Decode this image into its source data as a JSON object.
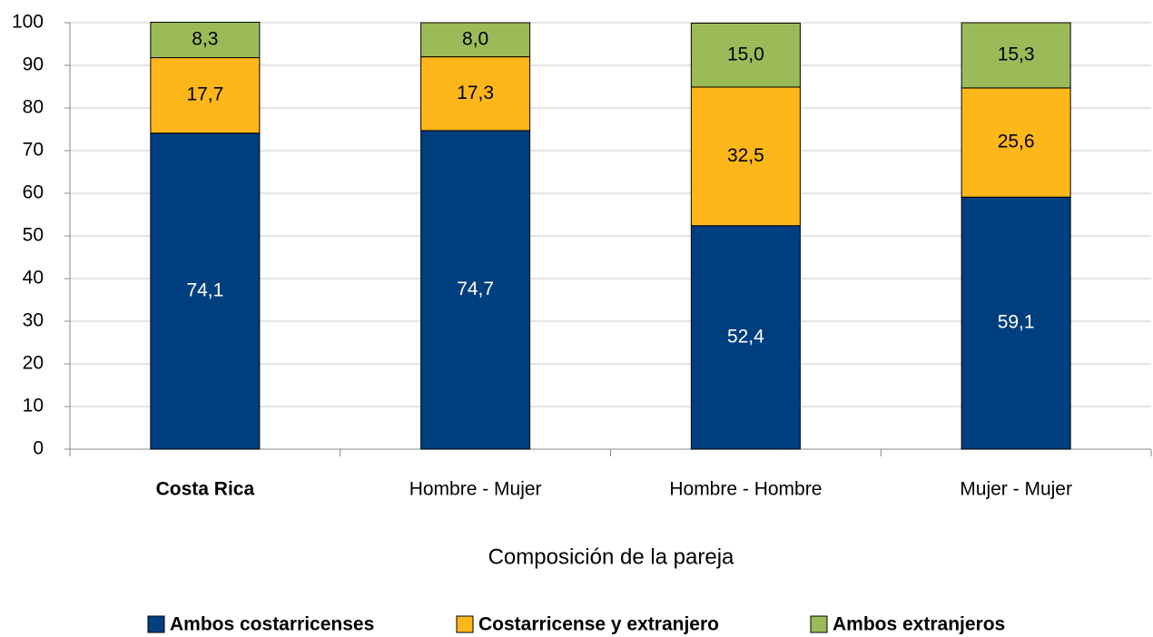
{
  "chart_data": {
    "type": "stacked_bar",
    "x_label": "Composición de la pareja",
    "categories": [
      "Costa Rica",
      "Hombre - Mujer",
      "Hombre - Hombre",
      "Mujer - Mujer"
    ],
    "series": [
      {
        "name": "Ambos costarricenses",
        "color": "#003f7f",
        "values": [
          74.1,
          74.7,
          52.4,
          59.1
        ],
        "value_labels": [
          "74,1",
          "74,7",
          "52,4",
          "59,1"
        ]
      },
      {
        "name": "Costarricense y extranjero",
        "color": "#fdb71a",
        "values": [
          17.7,
          17.3,
          32.5,
          25.6
        ],
        "value_labels": [
          "17,7",
          "17,3",
          "32,5",
          "25,6"
        ]
      },
      {
        "name": "Ambos extranjeros",
        "color": "#9bbb59",
        "values": [
          8.3,
          8.0,
          15.0,
          15.3
        ],
        "value_labels": [
          "8,3",
          "8,0",
          "15,0",
          "15,3"
        ]
      }
    ],
    "ylim": [
      0,
      100
    ],
    "yticks": [
      0,
      10,
      20,
      30,
      40,
      50,
      60,
      70,
      80,
      90,
      100
    ],
    "grid": true,
    "legend": "bottom"
  }
}
